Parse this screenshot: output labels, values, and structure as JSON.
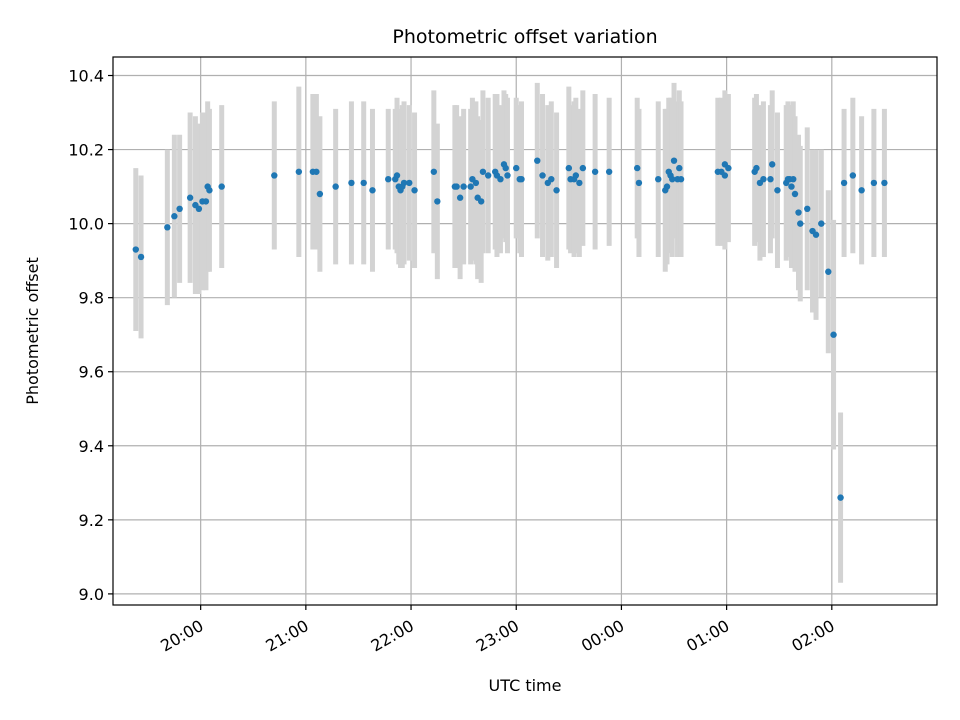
{
  "chart_data": {
    "type": "scatter",
    "title": "Photometric offset variation",
    "xlabel": "UTC time",
    "ylabel": "Photometric offset",
    "x_start": "19:10",
    "x_end": "03:00",
    "x_ticks": [
      "20:00",
      "21:00",
      "22:00",
      "23:00",
      "00:00",
      "01:00",
      "02:00"
    ],
    "ylim": [
      8.97,
      10.45
    ],
    "y_ticks": [
      "9.0",
      "9.2",
      "9.4",
      "9.6",
      "9.8",
      "10.0",
      "10.2",
      "10.4"
    ],
    "grid": true,
    "colors": {
      "points": "#1f77b4",
      "errorbars": "#d3d3d3",
      "grid": "#b0b0b0"
    },
    "series": [
      {
        "x": [
          "19:23",
          "19:26",
          "19:41",
          "19:45",
          "19:48",
          "19:54",
          "19:57",
          "19:59",
          "20:01",
          "20:03",
          "20:04",
          "20:05",
          "20:12",
          "20:42",
          "20:56",
          "21:04",
          "21:06",
          "21:08",
          "21:17",
          "21:26",
          "21:33",
          "21:38",
          "21:47",
          "21:51",
          "21:52",
          "21:53",
          "21:54",
          "21:55",
          "21:56",
          "21:59",
          "22:02",
          "22:13",
          "22:15",
          "22:25",
          "22:26",
          "22:28",
          "22:30",
          "22:34",
          "22:35",
          "22:37",
          "22:38",
          "22:40",
          "22:41",
          "22:44",
          "22:48",
          "22:49",
          "22:51",
          "22:53",
          "22:54",
          "22:55",
          "23:00",
          "23:02",
          "23:03",
          "23:12",
          "23:15",
          "23:18",
          "23:20",
          "23:23",
          "23:30",
          "23:31",
          "23:33",
          "23:34",
          "23:36",
          "23:38",
          "23:45",
          "23:53",
          "00:09",
          "00:10",
          "00:21",
          "00:25",
          "00:26",
          "00:27",
          "00:28",
          "00:29",
          "00:30",
          "00:32",
          "00:33",
          "00:34",
          "00:55",
          "00:57",
          "00:59",
          "00:59",
          "01:01",
          "01:16",
          "01:17",
          "01:19",
          "01:21",
          "01:25",
          "01:26",
          "01:29",
          "01:34",
          "01:35",
          "01:36",
          "01:37",
          "01:38",
          "01:39",
          "01:41",
          "01:42",
          "01:46",
          "01:49",
          "01:51",
          "01:54",
          "01:58",
          "02:01",
          "02:05",
          "02:07",
          "02:12",
          "02:17",
          "02:24",
          "02:30"
        ],
        "y": [
          9.93,
          9.91,
          9.99,
          10.02,
          10.04,
          10.07,
          10.05,
          10.04,
          10.06,
          10.06,
          10.1,
          10.09,
          10.1,
          10.13,
          10.14,
          10.14,
          10.14,
          10.08,
          10.1,
          10.11,
          10.11,
          10.09,
          10.12,
          10.12,
          10.13,
          10.1,
          10.09,
          10.1,
          10.11,
          10.11,
          10.09,
          10.14,
          10.06,
          10.1,
          10.1,
          10.07,
          10.1,
          10.1,
          10.12,
          10.11,
          10.07,
          10.06,
          10.14,
          10.13,
          10.14,
          10.13,
          10.12,
          10.16,
          10.15,
          10.13,
          10.15,
          10.12,
          10.12,
          10.17,
          10.13,
          10.11,
          10.12,
          10.09,
          10.15,
          10.12,
          10.12,
          10.13,
          10.11,
          10.15,
          10.14,
          10.14,
          10.15,
          10.11,
          10.12,
          10.09,
          10.1,
          10.14,
          10.13,
          10.12,
          10.17,
          10.12,
          10.15,
          10.12,
          10.14,
          10.14,
          10.13,
          10.16,
          10.15,
          10.14,
          10.15,
          10.11,
          10.12,
          10.12,
          10.16,
          10.09,
          10.11,
          10.12,
          10.12,
          10.1,
          10.12,
          10.08,
          10.03,
          10.0,
          10.04,
          9.98,
          9.97,
          10.0,
          9.87,
          9.7,
          9.26,
          10.11,
          10.13,
          10.09,
          10.11,
          10.11
        ],
        "yerr": [
          0.22,
          0.22,
          0.21,
          0.22,
          0.2,
          0.23,
          0.24,
          0.23,
          0.24,
          0.24,
          0.23,
          0.22,
          0.22,
          0.2,
          0.23,
          0.21,
          0.21,
          0.21,
          0.21,
          0.22,
          0.22,
          0.22,
          0.19,
          0.19,
          0.21,
          0.21,
          0.21,
          0.22,
          0.22,
          0.21,
          0.21,
          0.22,
          0.21,
          0.22,
          0.22,
          0.22,
          0.21,
          0.21,
          0.22,
          0.22,
          0.22,
          0.22,
          0.22,
          0.21,
          0.21,
          0.22,
          0.2,
          0.2,
          0.2,
          0.21,
          0.19,
          0.2,
          0.21,
          0.21,
          0.22,
          0.21,
          0.21,
          0.21,
          0.22,
          0.2,
          0.21,
          0.21,
          0.2,
          0.21,
          0.21,
          0.2,
          0.19,
          0.2,
          0.21,
          0.22,
          0.21,
          0.2,
          0.21,
          0.21,
          0.21,
          0.21,
          0.21,
          0.21,
          0.2,
          0.2,
          0.2,
          0.2,
          0.2,
          0.2,
          0.2,
          0.21,
          0.21,
          0.2,
          0.2,
          0.21,
          0.21,
          0.21,
          0.2,
          0.22,
          0.21,
          0.21,
          0.21,
          0.21,
          0.22,
          0.22,
          0.23,
          0.2,
          0.22,
          0.31,
          0.23,
          0.2,
          0.21,
          0.2,
          0.2,
          0.2
        ]
      }
    ]
  }
}
